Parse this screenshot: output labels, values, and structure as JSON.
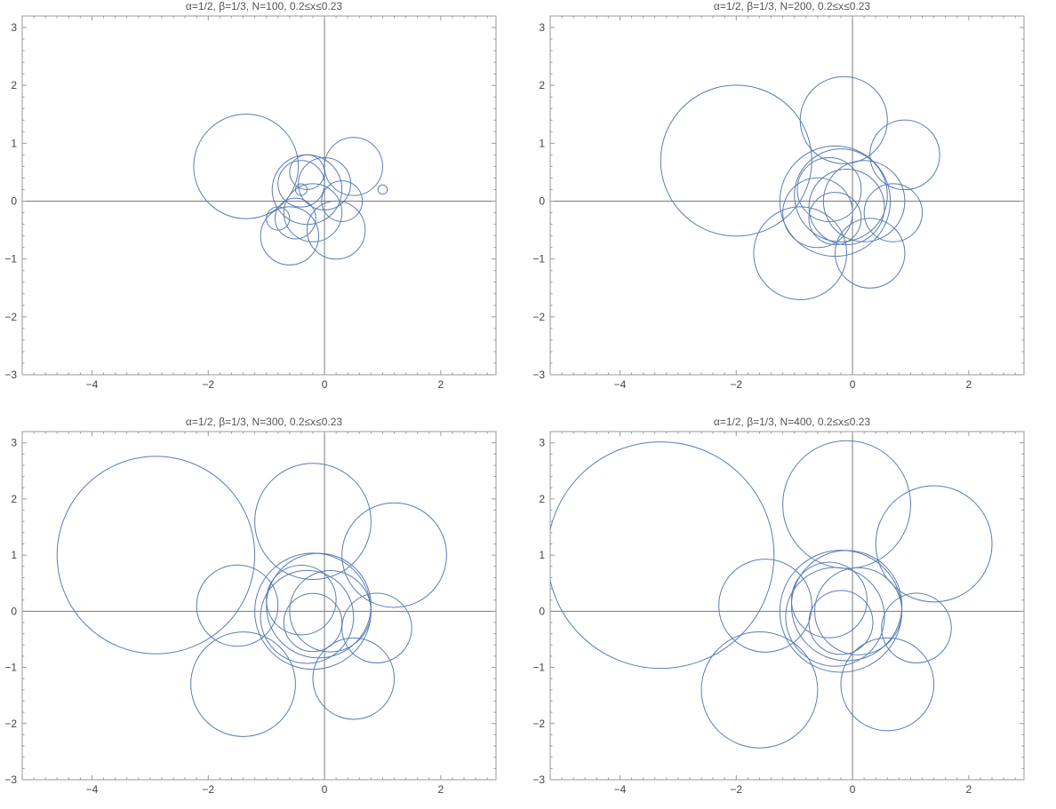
{
  "chart_data": [
    {
      "type": "line",
      "title": "α=1/2, β=1/3, N=100, 0.2≤x≤0.23",
      "xlim": [
        -5.2,
        2.95
      ],
      "ylim": [
        -3.0,
        3.2
      ],
      "xticks": [
        -4,
        -2,
        0,
        2
      ],
      "yticks": [
        -3,
        -2,
        -1,
        0,
        1,
        2,
        3
      ],
      "xtick_labels": [
        "−4",
        "−2",
        "0",
        "2"
      ],
      "ytick_labels": [
        "−3",
        "−2",
        "−1",
        "0",
        "1",
        "2",
        "3"
      ],
      "axes_at_origin": true,
      "grid": false,
      "curve_color": "#5b7db5",
      "series": [
        {
          "loops": [
            {
              "cx": -1.35,
              "cy": 0.6,
              "r": 0.9
            },
            {
              "cx": 0.5,
              "cy": 0.6,
              "r": 0.5
            },
            {
              "cx": -0.6,
              "cy": -0.6,
              "r": 0.5
            },
            {
              "cx": 0.2,
              "cy": -0.5,
              "r": 0.5
            },
            {
              "cx": -0.3,
              "cy": 0.2,
              "r": 0.6
            },
            {
              "cx": -0.2,
              "cy": -0.2,
              "r": 0.5
            },
            {
              "cx": -0.4,
              "cy": 0.3,
              "r": 0.4
            },
            {
              "cx": 0.0,
              "cy": 0.3,
              "r": 0.45
            },
            {
              "cx": -0.8,
              "cy": -0.3,
              "r": 0.2
            },
            {
              "cx": -0.4,
              "cy": 0.2,
              "r": 0.1
            },
            {
              "cx": 1.0,
              "cy": 0.2,
              "r": 0.08
            },
            {
              "cx": -0.3,
              "cy": 0.5,
              "r": 0.3
            },
            {
              "cx": 0.3,
              "cy": 0.0,
              "r": 0.35
            },
            {
              "cx": -0.5,
              "cy": -0.3,
              "r": 0.35
            }
          ]
        }
      ]
    },
    {
      "type": "line",
      "title": "α=1/2, β=1/3, N=200, 0.2≤x≤0.23",
      "xlim": [
        -5.2,
        2.95
      ],
      "ylim": [
        -3.0,
        3.2
      ],
      "xticks": [
        -4,
        -2,
        0,
        2
      ],
      "yticks": [
        -3,
        -2,
        -1,
        0,
        1,
        2,
        3
      ],
      "xtick_labels": [
        "−4",
        "−2",
        "0",
        "2"
      ],
      "ytick_labels": [
        "−3",
        "−2",
        "−1",
        "0",
        "1",
        "2",
        "3"
      ],
      "axes_at_origin": true,
      "grid": false,
      "curve_color": "#5b7db5",
      "series": [
        {
          "loops": [
            {
              "cx": -2.0,
              "cy": 0.7,
              "r": 1.3
            },
            {
              "cx": -0.15,
              "cy": 1.4,
              "r": 0.75
            },
            {
              "cx": 0.9,
              "cy": 0.8,
              "r": 0.6
            },
            {
              "cx": -0.9,
              "cy": -0.9,
              "r": 0.8
            },
            {
              "cx": 0.3,
              "cy": -0.9,
              "r": 0.6
            },
            {
              "cx": 0.7,
              "cy": -0.2,
              "r": 0.5
            },
            {
              "cx": -0.3,
              "cy": 0.0,
              "r": 0.95
            },
            {
              "cx": -0.2,
              "cy": 0.1,
              "r": 0.8
            },
            {
              "cx": -0.1,
              "cy": -0.1,
              "r": 0.65
            },
            {
              "cx": -0.4,
              "cy": 0.2,
              "r": 0.55
            },
            {
              "cx": 0.2,
              "cy": 0.0,
              "r": 0.7
            },
            {
              "cx": -0.6,
              "cy": -0.2,
              "r": 0.6
            },
            {
              "cx": -0.3,
              "cy": -0.3,
              "r": 0.45
            }
          ]
        }
      ]
    },
    {
      "type": "line",
      "title": "α=1/2, β=1/3, N=300, 0.2≤x≤0.23",
      "xlim": [
        -5.2,
        2.95
      ],
      "ylim": [
        -3.0,
        3.2
      ],
      "xticks": [
        -4,
        -2,
        0,
        2
      ],
      "yticks": [
        -3,
        -2,
        -1,
        0,
        1,
        2,
        3
      ],
      "xtick_labels": [
        "−4",
        "−2",
        "0",
        "2"
      ],
      "ytick_labels": [
        "−3",
        "−2",
        "−1",
        "0",
        "1",
        "2",
        "3"
      ],
      "axes_at_origin": true,
      "grid": false,
      "curve_color": "#5b7db5",
      "series": [
        {
          "loops": [
            {
              "cx": -2.9,
              "cy": 1.0,
              "r": 1.7
            },
            {
              "cx": -0.2,
              "cy": 1.6,
              "r": 1.0
            },
            {
              "cx": 1.2,
              "cy": 1.0,
              "r": 0.9
            },
            {
              "cx": -1.4,
              "cy": -1.3,
              "r": 0.9
            },
            {
              "cx": 0.5,
              "cy": -1.2,
              "r": 0.7
            },
            {
              "cx": -1.5,
              "cy": 0.1,
              "r": 0.7
            },
            {
              "cx": 0.9,
              "cy": -0.3,
              "r": 0.6
            },
            {
              "cx": -0.2,
              "cy": 0.0,
              "r": 1.0
            },
            {
              "cx": -0.1,
              "cy": 0.1,
              "r": 0.9
            },
            {
              "cx": -0.3,
              "cy": -0.1,
              "r": 0.8
            },
            {
              "cx": 0.1,
              "cy": 0.0,
              "r": 0.7
            },
            {
              "cx": -0.4,
              "cy": 0.2,
              "r": 0.6
            },
            {
              "cx": -0.2,
              "cy": -0.2,
              "r": 0.5
            }
          ]
        }
      ]
    },
    {
      "type": "line",
      "title": "α=1/2, β=1/3, N=400, 0.2≤x≤0.23",
      "xlim": [
        -5.2,
        2.95
      ],
      "ylim": [
        -3.0,
        3.2
      ],
      "xticks": [
        -4,
        -2,
        0,
        2
      ],
      "yticks": [
        -3,
        -2,
        -1,
        0,
        1,
        2,
        3
      ],
      "xtick_labels": [
        "−4",
        "−2",
        "0",
        "2"
      ],
      "ytick_labels": [
        "−3",
        "−2",
        "−1",
        "0",
        "1",
        "2",
        "3"
      ],
      "axes_at_origin": true,
      "grid": false,
      "curve_color": "#5b7db5",
      "series": [
        {
          "loops": [
            {
              "cx": -3.3,
              "cy": 1.0,
              "r": 1.95
            },
            {
              "cx": -0.1,
              "cy": 1.9,
              "r": 1.1
            },
            {
              "cx": 1.4,
              "cy": 1.2,
              "r": 1.0
            },
            {
              "cx": -1.6,
              "cy": -1.4,
              "r": 1.0
            },
            {
              "cx": 0.6,
              "cy": -1.3,
              "r": 0.8
            },
            {
              "cx": -1.5,
              "cy": 0.1,
              "r": 0.8
            },
            {
              "cx": 1.1,
              "cy": -0.3,
              "r": 0.6
            },
            {
              "cx": -0.2,
              "cy": 0.0,
              "r": 1.05
            },
            {
              "cx": -0.1,
              "cy": 0.1,
              "r": 0.95
            },
            {
              "cx": -0.3,
              "cy": -0.1,
              "r": 0.85
            },
            {
              "cx": 0.1,
              "cy": 0.0,
              "r": 0.75
            },
            {
              "cx": -0.4,
              "cy": 0.2,
              "r": 0.65
            },
            {
              "cx": -0.2,
              "cy": -0.2,
              "r": 0.55
            }
          ]
        }
      ]
    }
  ]
}
